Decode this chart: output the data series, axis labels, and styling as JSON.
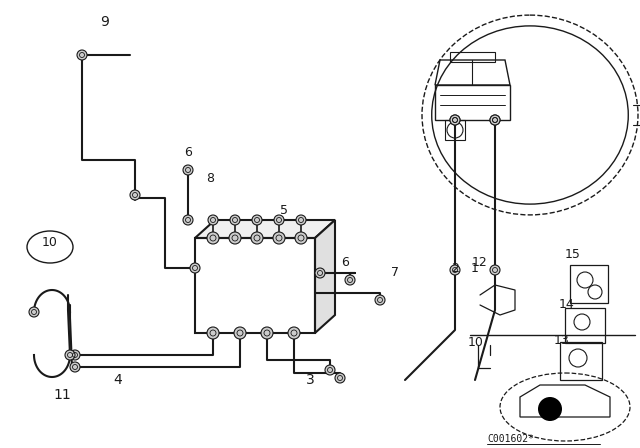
{
  "bg_color": "#ffffff",
  "line_color": "#1a1a1a",
  "fig_width": 6.4,
  "fig_height": 4.48,
  "dpi": 100,
  "diagram_code": "C001602*"
}
